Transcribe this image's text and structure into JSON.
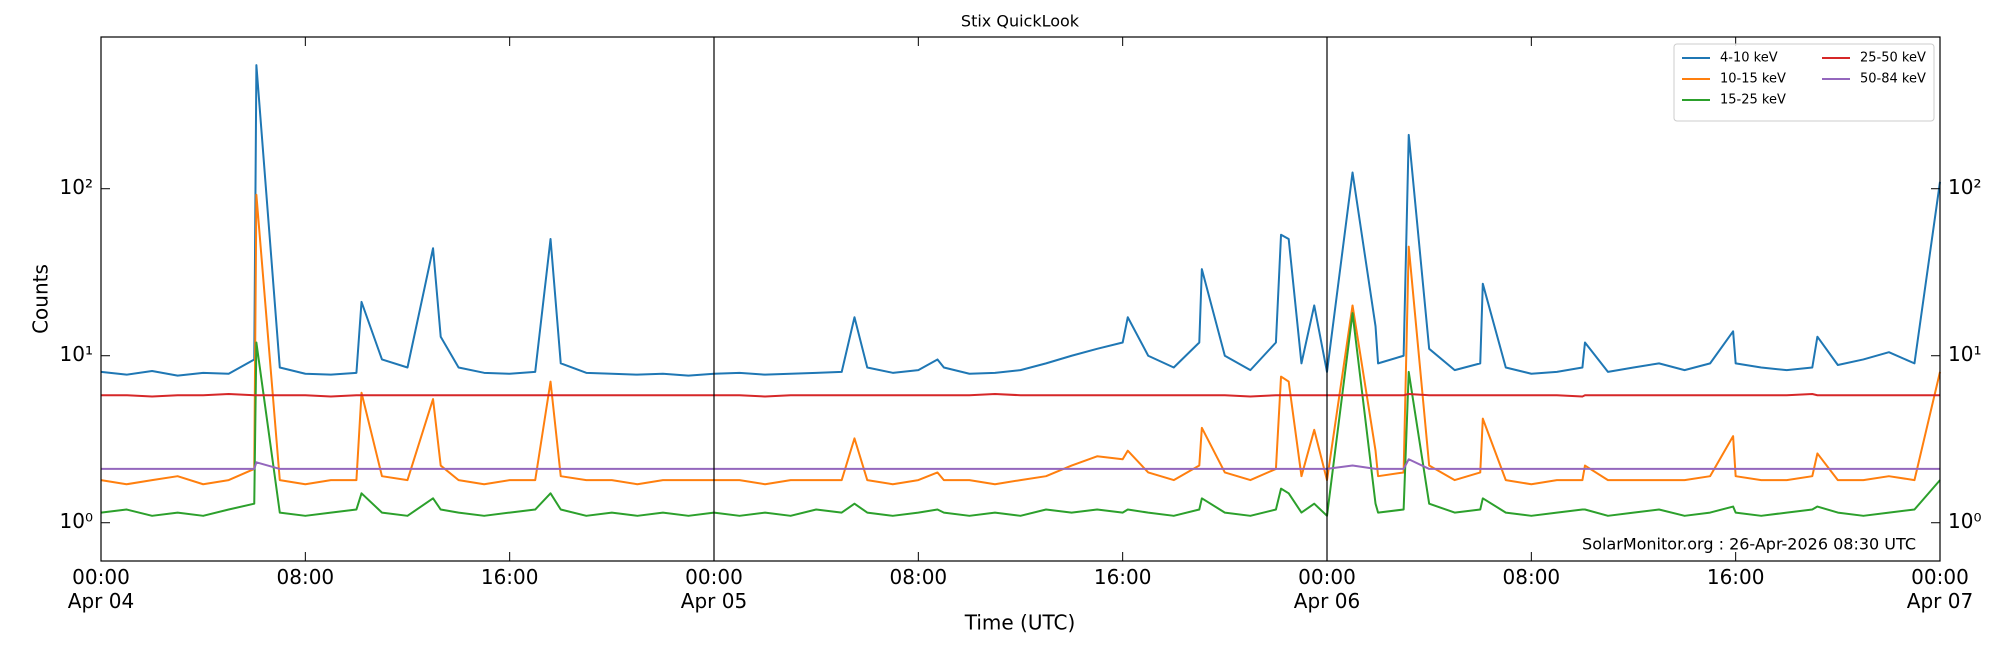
{
  "chart_data": {
    "type": "line",
    "title": "Stix QuickLook",
    "xlabel": "Time (UTC)",
    "ylabel": "Counts",
    "annotation": "SolarMonitor.org : 26-Apr-2026 08:30 UTC",
    "log_y": true,
    "legend": "upper right",
    "legend_columns": 2,
    "xlim": [
      "Apr 04 00:00",
      "Apr 07 00:00"
    ],
    "xticks": [
      {
        "value": "Apr 04 00:00",
        "label": "00:00\nApr 04"
      },
      {
        "value": "Apr 04 08:00",
        "label": "08:00"
      },
      {
        "value": "Apr 04 16:00",
        "label": "16:00"
      },
      {
        "value": "Apr 05 00:00",
        "label": "00:00\nApr 05"
      },
      {
        "value": "Apr 05 08:00",
        "label": "08:00"
      },
      {
        "value": "Apr 05 16:00",
        "label": "16:00"
      },
      {
        "value": "Apr 06 00:00",
        "label": "00:00\nApr 06"
      },
      {
        "value": "Apr 06 08:00",
        "label": "08:00"
      },
      {
        "value": "Apr 06 16:00",
        "label": "16:00"
      },
      {
        "value": "Apr 07 00:00",
        "label": "00:00\nApr 07"
      }
    ],
    "vlines": [
      "Apr 05 00:00",
      "Apr 06 00:00"
    ],
    "ylim": [
      0.59,
      810
    ],
    "yticks": [
      {
        "value": 1,
        "label": "10⁰"
      },
      {
        "value": 10,
        "label": "10¹"
      },
      {
        "value": 100,
        "label": "10²"
      }
    ],
    "x": [
      "Apr 04 00:00",
      "Apr 04 01:00",
      "Apr 04 02:00",
      "Apr 04 03:00",
      "Apr 04 04:00",
      "Apr 04 05:00",
      "Apr 04 06:00",
      "Apr 04 06:05",
      "Apr 04 07:00",
      "Apr 04 08:00",
      "Apr 04 09:00",
      "Apr 04 10:00",
      "Apr 04 10:12",
      "Apr 04 11:00",
      "Apr 04 12:00",
      "Apr 04 13:00",
      "Apr 04 13:18",
      "Apr 04 14:00",
      "Apr 04 15:00",
      "Apr 04 16:00",
      "Apr 04 17:00",
      "Apr 04 17:36",
      "Apr 04 18:00",
      "Apr 04 19:00",
      "Apr 04 20:00",
      "Apr 04 21:00",
      "Apr 04 22:00",
      "Apr 04 23:00",
      "Apr 05 00:00",
      "Apr 05 01:00",
      "Apr 05 02:00",
      "Apr 05 03:00",
      "Apr 05 04:00",
      "Apr 05 05:00",
      "Apr 05 05:30",
      "Apr 05 06:00",
      "Apr 05 07:00",
      "Apr 05 08:00",
      "Apr 05 08:45",
      "Apr 05 09:00",
      "Apr 05 10:00",
      "Apr 05 11:00",
      "Apr 05 12:00",
      "Apr 05 13:00",
      "Apr 05 14:00",
      "Apr 05 15:00",
      "Apr 05 16:00",
      "Apr 05 16:12",
      "Apr 05 17:00",
      "Apr 05 18:00",
      "Apr 05 19:00",
      "Apr 05 19:06",
      "Apr 05 20:00",
      "Apr 05 21:00",
      "Apr 05 22:00",
      "Apr 05 22:12",
      "Apr 05 22:30",
      "Apr 05 23:00",
      "Apr 05 23:30",
      "Apr 06 00:00",
      "Apr 06 01:00",
      "Apr 06 01:54",
      "Apr 06 02:00",
      "Apr 06 03:00",
      "Apr 06 03:12",
      "Apr 06 04:00",
      "Apr 06 05:00",
      "Apr 06 06:00",
      "Apr 06 06:06",
      "Apr 06 07:00",
      "Apr 06 08:00",
      "Apr 06 09:00",
      "Apr 06 10:00",
      "Apr 06 10:06",
      "Apr 06 11:00",
      "Apr 06 12:00",
      "Apr 06 13:00",
      "Apr 06 14:00",
      "Apr 06 15:00",
      "Apr 06 15:54",
      "Apr 06 16:00",
      "Apr 06 17:00",
      "Apr 06 18:00",
      "Apr 06 19:00",
      "Apr 06 19:12",
      "Apr 06 20:00",
      "Apr 06 21:00",
      "Apr 06 22:00",
      "Apr 06 23:00",
      "Apr 07 00:00"
    ],
    "series": [
      {
        "name": "4-10 keV",
        "color": "#1f77b4",
        "values": [
          8.0,
          7.7,
          8.1,
          7.6,
          7.9,
          7.8,
          9.5,
          550,
          8.5,
          7.8,
          7.7,
          7.9,
          21,
          9.5,
          8.5,
          44,
          13,
          8.5,
          7.9,
          7.8,
          8.0,
          50,
          9,
          7.9,
          7.8,
          7.7,
          7.8,
          7.6,
          7.8,
          7.9,
          7.7,
          7.8,
          7.9,
          8.0,
          17,
          8.5,
          7.9,
          8.2,
          9.5,
          8.5,
          7.8,
          7.9,
          8.2,
          9,
          10,
          11,
          12,
          17,
          10,
          8.5,
          12,
          33,
          10,
          8.2,
          12,
          53,
          50,
          9,
          20,
          8,
          125,
          15,
          9,
          10,
          210,
          11,
          8.2,
          9,
          27,
          8.5,
          7.8,
          8,
          8.5,
          12,
          8,
          8.5,
          9,
          8.2,
          9,
          14,
          9,
          8.5,
          8.2,
          8.5,
          13,
          8.8,
          9.5,
          10.5,
          9,
          110
        ]
      },
      {
        "name": "10-15 keV",
        "color": "#ff7f0e",
        "values": [
          1.8,
          1.7,
          1.8,
          1.9,
          1.7,
          1.8,
          2.1,
          92,
          1.8,
          1.7,
          1.8,
          1.8,
          6,
          1.9,
          1.8,
          5.5,
          2.2,
          1.8,
          1.7,
          1.8,
          1.8,
          7,
          1.9,
          1.8,
          1.8,
          1.7,
          1.8,
          1.8,
          1.8,
          1.8,
          1.7,
          1.8,
          1.8,
          1.8,
          3.2,
          1.8,
          1.7,
          1.8,
          2.0,
          1.8,
          1.8,
          1.7,
          1.8,
          1.9,
          2.2,
          2.5,
          2.4,
          2.7,
          2,
          1.8,
          2.2,
          3.7,
          2,
          1.8,
          2.1,
          7.5,
          7,
          1.9,
          3.6,
          1.8,
          20,
          2.7,
          1.9,
          2.0,
          45,
          2.2,
          1.8,
          2,
          4.2,
          1.8,
          1.7,
          1.8,
          1.8,
          2.2,
          1.8,
          1.8,
          1.8,
          1.8,
          1.9,
          3.3,
          1.9,
          1.8,
          1.8,
          1.9,
          2.6,
          1.8,
          1.8,
          1.9,
          1.8,
          8
        ]
      },
      {
        "name": "15-25 keV",
        "color": "#2ca02c",
        "values": [
          1.15,
          1.2,
          1.1,
          1.15,
          1.1,
          1.2,
          1.3,
          12,
          1.15,
          1.1,
          1.15,
          1.2,
          1.5,
          1.15,
          1.1,
          1.4,
          1.2,
          1.15,
          1.1,
          1.15,
          1.2,
          1.5,
          1.2,
          1.1,
          1.15,
          1.1,
          1.15,
          1.1,
          1.15,
          1.1,
          1.15,
          1.1,
          1.2,
          1.15,
          1.3,
          1.15,
          1.1,
          1.15,
          1.2,
          1.15,
          1.1,
          1.15,
          1.1,
          1.2,
          1.15,
          1.2,
          1.15,
          1.2,
          1.15,
          1.1,
          1.2,
          1.4,
          1.15,
          1.1,
          1.2,
          1.6,
          1.5,
          1.15,
          1.3,
          1.1,
          18,
          1.3,
          1.15,
          1.2,
          8,
          1.3,
          1.15,
          1.2,
          1.4,
          1.15,
          1.1,
          1.15,
          1.2,
          1.2,
          1.1,
          1.15,
          1.2,
          1.1,
          1.15,
          1.25,
          1.15,
          1.1,
          1.15,
          1.2,
          1.25,
          1.15,
          1.1,
          1.15,
          1.2,
          1.8
        ]
      },
      {
        "name": "25-50 keV",
        "color": "#d62728",
        "values": [
          5.8,
          5.8,
          5.7,
          5.8,
          5.8,
          5.9,
          5.8,
          5.8,
          5.8,
          5.8,
          5.7,
          5.8,
          5.8,
          5.8,
          5.8,
          5.8,
          5.8,
          5.8,
          5.8,
          5.8,
          5.8,
          5.8,
          5.8,
          5.8,
          5.8,
          5.8,
          5.8,
          5.8,
          5.8,
          5.8,
          5.7,
          5.8,
          5.8,
          5.8,
          5.8,
          5.8,
          5.8,
          5.8,
          5.8,
          5.8,
          5.8,
          5.9,
          5.8,
          5.8,
          5.8,
          5.8,
          5.8,
          5.8,
          5.8,
          5.8,
          5.8,
          5.8,
          5.8,
          5.7,
          5.8,
          5.8,
          5.8,
          5.8,
          5.8,
          5.8,
          5.8,
          5.8,
          5.8,
          5.8,
          5.9,
          5.8,
          5.8,
          5.8,
          5.8,
          5.8,
          5.8,
          5.8,
          5.7,
          5.8,
          5.8,
          5.8,
          5.8,
          5.8,
          5.8,
          5.8,
          5.8,
          5.8,
          5.8,
          5.9,
          5.8,
          5.8,
          5.8,
          5.8,
          5.8,
          5.8
        ]
      },
      {
        "name": "50-84 keV",
        "color": "#9467bd",
        "values": [
          2.1,
          2.1,
          2.1,
          2.1,
          2.1,
          2.1,
          2.1,
          2.3,
          2.1,
          2.1,
          2.1,
          2.1,
          2.1,
          2.1,
          2.1,
          2.1,
          2.1,
          2.1,
          2.1,
          2.1,
          2.1,
          2.1,
          2.1,
          2.1,
          2.1,
          2.1,
          2.1,
          2.1,
          2.1,
          2.1,
          2.1,
          2.1,
          2.1,
          2.1,
          2.1,
          2.1,
          2.1,
          2.1,
          2.1,
          2.1,
          2.1,
          2.1,
          2.1,
          2.1,
          2.1,
          2.1,
          2.1,
          2.1,
          2.1,
          2.1,
          2.1,
          2.1,
          2.1,
          2.1,
          2.1,
          2.1,
          2.1,
          2.1,
          2.1,
          2.1,
          2.2,
          2.1,
          2.1,
          2.1,
          2.4,
          2.1,
          2.1,
          2.1,
          2.1,
          2.1,
          2.1,
          2.1,
          2.1,
          2.1,
          2.1,
          2.1,
          2.1,
          2.1,
          2.1,
          2.1,
          2.1,
          2.1,
          2.1,
          2.1,
          2.1,
          2.1,
          2.1,
          2.1,
          2.1,
          2.1
        ]
      }
    ]
  }
}
